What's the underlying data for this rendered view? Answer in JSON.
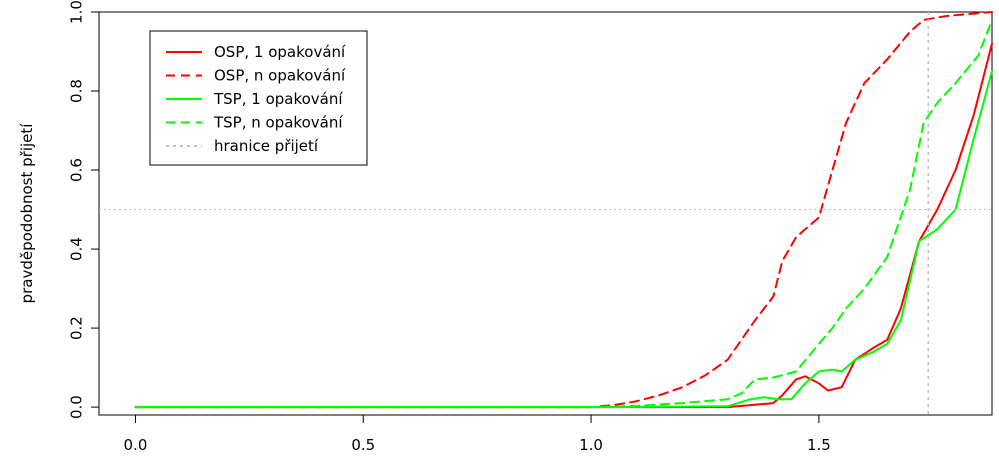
{
  "chart_data": {
    "type": "line",
    "title": "",
    "xlabel": "",
    "ylabel": "pravděpodobnost přijetí",
    "xlim": [
      -0.08,
      1.88
    ],
    "ylim": [
      -0.02,
      1.0
    ],
    "x_ticks": [
      0.0,
      0.5,
      1.0,
      1.5
    ],
    "x_tick_labels": [
      "0.0",
      "0.5",
      "1.0",
      "1.5"
    ],
    "y_ticks": [
      0.0,
      0.2,
      0.4,
      0.6,
      0.8,
      1.0
    ],
    "y_tick_labels": [
      "0.0",
      "0.2",
      "0.4",
      "0.6",
      "0.8",
      "1.0"
    ],
    "legend_position": "top-left",
    "series": [
      {
        "name": "OSP, 1 opakování",
        "color": "#ff0000",
        "dash": "solid",
        "points": [
          [
            0.0,
            0.0
          ],
          [
            1.0,
            0.0
          ],
          [
            1.3,
            0.0
          ],
          [
            1.4,
            0.01
          ],
          [
            1.42,
            0.03
          ],
          [
            1.45,
            0.07
          ],
          [
            1.47,
            0.078
          ],
          [
            1.5,
            0.06
          ],
          [
            1.52,
            0.042
          ],
          [
            1.55,
            0.05
          ],
          [
            1.58,
            0.12
          ],
          [
            1.62,
            0.15
          ],
          [
            1.65,
            0.17
          ],
          [
            1.68,
            0.25
          ],
          [
            1.72,
            0.42
          ],
          [
            1.76,
            0.5
          ],
          [
            1.8,
            0.6
          ],
          [
            1.84,
            0.74
          ],
          [
            1.88,
            0.92
          ]
        ]
      },
      {
        "name": "OSP, n opakování",
        "color": "#ff0000",
        "dash": "dashed",
        "points": [
          [
            0.0,
            0.0
          ],
          [
            1.0,
            0.0
          ],
          [
            1.05,
            0.005
          ],
          [
            1.1,
            0.015
          ],
          [
            1.15,
            0.03
          ],
          [
            1.2,
            0.05
          ],
          [
            1.25,
            0.08
          ],
          [
            1.3,
            0.12
          ],
          [
            1.33,
            0.17
          ],
          [
            1.36,
            0.22
          ],
          [
            1.4,
            0.28
          ],
          [
            1.42,
            0.37
          ],
          [
            1.45,
            0.43
          ],
          [
            1.5,
            0.48
          ],
          [
            1.53,
            0.6
          ],
          [
            1.56,
            0.72
          ],
          [
            1.6,
            0.82
          ],
          [
            1.65,
            0.88
          ],
          [
            1.7,
            0.95
          ],
          [
            1.73,
            0.98
          ],
          [
            1.78,
            0.99
          ],
          [
            1.83,
            0.995
          ],
          [
            1.88,
            1.0
          ]
        ]
      },
      {
        "name": "TSP, 1 opakování",
        "color": "#00ff00",
        "dash": "solid",
        "points": [
          [
            0.0,
            0.0
          ],
          [
            1.0,
            0.0
          ],
          [
            1.3,
            0.002
          ],
          [
            1.35,
            0.02
          ],
          [
            1.38,
            0.025
          ],
          [
            1.41,
            0.02
          ],
          [
            1.44,
            0.02
          ],
          [
            1.47,
            0.06
          ],
          [
            1.5,
            0.09
          ],
          [
            1.53,
            0.095
          ],
          [
            1.55,
            0.09
          ],
          [
            1.58,
            0.12
          ],
          [
            1.62,
            0.14
          ],
          [
            1.65,
            0.16
          ],
          [
            1.68,
            0.22
          ],
          [
            1.72,
            0.42
          ],
          [
            1.76,
            0.45
          ],
          [
            1.8,
            0.5
          ],
          [
            1.84,
            0.68
          ],
          [
            1.88,
            0.85
          ]
        ]
      },
      {
        "name": "TSP, n opakování",
        "color": "#00ff00",
        "dash": "dashed",
        "points": [
          [
            0.0,
            0.0
          ],
          [
            1.0,
            0.0
          ],
          [
            1.1,
            0.003
          ],
          [
            1.2,
            0.01
          ],
          [
            1.3,
            0.02
          ],
          [
            1.33,
            0.035
          ],
          [
            1.36,
            0.07
          ],
          [
            1.4,
            0.075
          ],
          [
            1.45,
            0.09
          ],
          [
            1.5,
            0.16
          ],
          [
            1.53,
            0.2
          ],
          [
            1.56,
            0.25
          ],
          [
            1.6,
            0.3
          ],
          [
            1.65,
            0.38
          ],
          [
            1.7,
            0.55
          ],
          [
            1.73,
            0.72
          ],
          [
            1.76,
            0.77
          ],
          [
            1.8,
            0.82
          ],
          [
            1.85,
            0.89
          ],
          [
            1.88,
            0.98
          ]
        ]
      },
      {
        "name": "hranice přijetí",
        "color": "#c0c0c0",
        "dash": "dotted",
        "vline_x": 1.74,
        "hline_y": 0.5
      }
    ]
  }
}
